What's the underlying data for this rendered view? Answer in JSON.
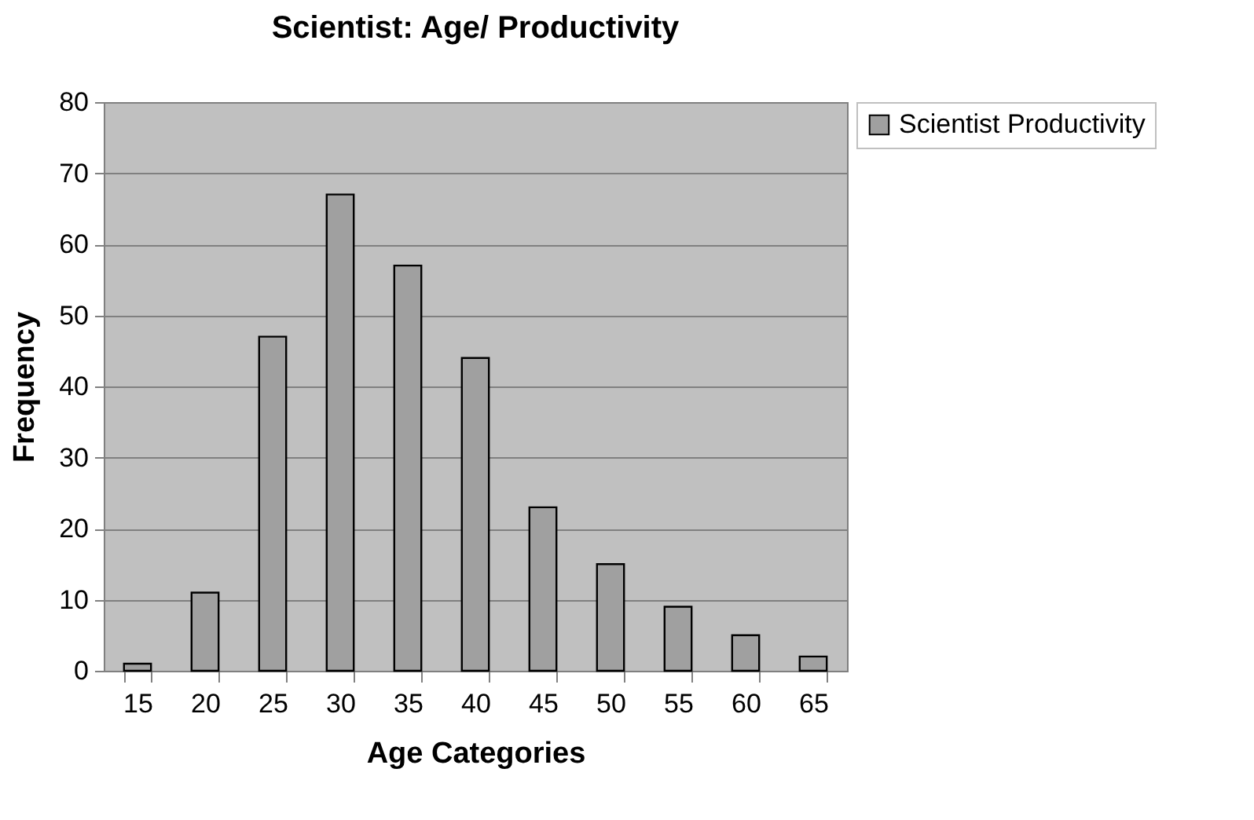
{
  "chart_data": {
    "type": "bar",
    "title": "Scientist: Age/ Productivity",
    "xlabel": "Age Categories",
    "ylabel": "Frequency",
    "categories": [
      "15",
      "20",
      "25",
      "30",
      "35",
      "40",
      "45",
      "50",
      "55",
      "60",
      "65"
    ],
    "series": [
      {
        "name": "Scientist Productivity",
        "color": "#a0a0a0",
        "values": [
          1,
          11,
          47,
          67,
          57,
          44,
          23,
          15,
          9,
          5,
          2
        ]
      }
    ],
    "ylim": [
      0,
      80
    ],
    "yticks": [
      0,
      10,
      20,
      30,
      40,
      50,
      60,
      70,
      80
    ],
    "grid": "y",
    "legend": "right"
  }
}
